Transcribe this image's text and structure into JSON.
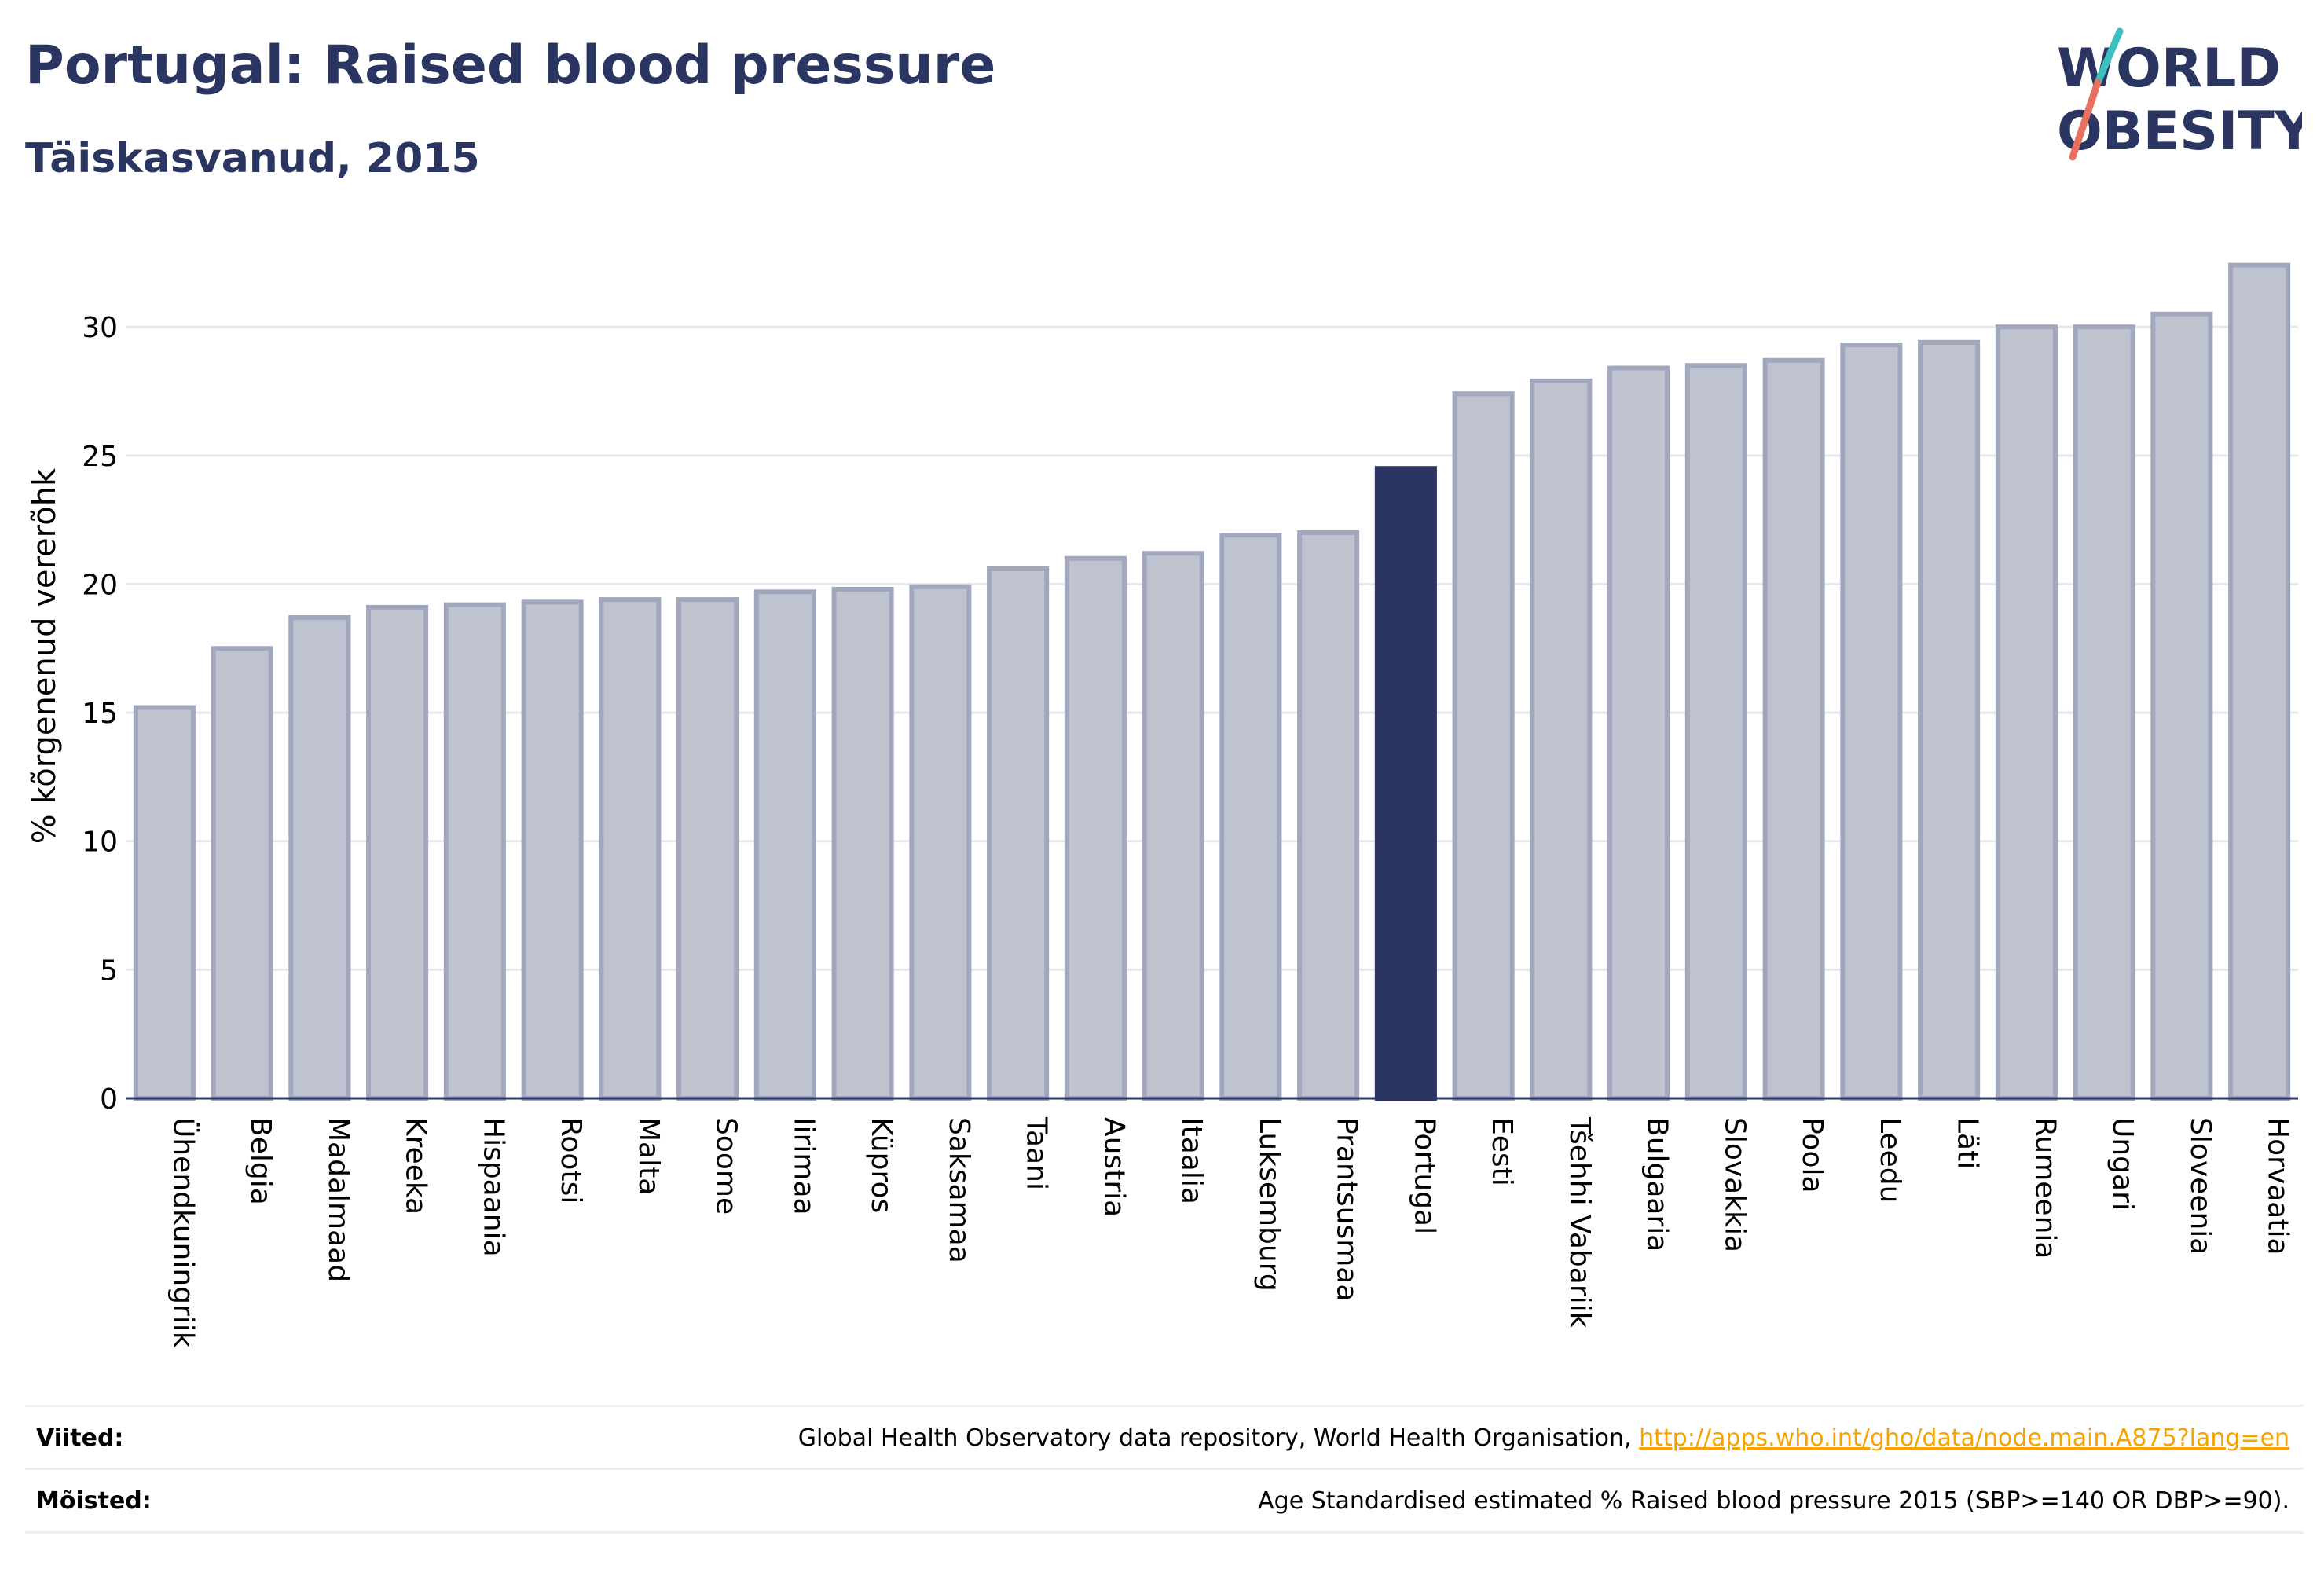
{
  "title": "Portugal: Raised blood pressure",
  "subtitle": "Täiskasvanud, 2015",
  "logo": {
    "line1": "WORLD",
    "line2": "OBESITY"
  },
  "colors": {
    "title": "#2a3561",
    "highlight_bar": "#2a3561",
    "other_bar": "#bfc3d0",
    "other_bar_border": "#a1a8bd",
    "logo_teal": "#3cbfbf",
    "logo_coral": "#e8705f",
    "link": "#f5a300"
  },
  "chart_data": {
    "type": "bar",
    "ylabel": "% kõrgenenud vererõhk",
    "xlabel": "",
    "ylim": [
      0,
      33
    ],
    "yticks": [
      0,
      5,
      10,
      15,
      20,
      25,
      30
    ],
    "grid": true,
    "highlight": "Portugal",
    "categories": [
      "Ühendkuningriik",
      "Belgia",
      "Madalmaad",
      "Kreeka",
      "Hispaania",
      "Rootsi",
      "Malta",
      "Soome",
      "Iirimaa",
      "Küpros",
      "Saksamaa",
      "Taani",
      "Austria",
      "Itaalia",
      "Luksemburg",
      "Prantsusmaa",
      "Portugal",
      "Eesti",
      "Tšehhi Vabariik",
      "Bulgaaria",
      "Slovakkia",
      "Poola",
      "Leedu",
      "Läti",
      "Rumeenia",
      "Ungari",
      "Sloveenia",
      "Horvaatia"
    ],
    "values": [
      15.2,
      17.5,
      18.7,
      19.1,
      19.2,
      19.3,
      19.4,
      19.4,
      19.7,
      19.8,
      19.9,
      20.6,
      21.0,
      21.2,
      21.9,
      22.0,
      24.5,
      27.4,
      27.9,
      28.4,
      28.5,
      28.7,
      29.3,
      29.4,
      30.0,
      30.0,
      30.5,
      32.4
    ]
  },
  "footer": {
    "refs_label": "Viited:",
    "refs_text": "Global Health Observatory data repository, World Health Organisation,",
    "refs_link": "http://apps.who.int/gho/data/node.main.A875?lang=en",
    "defs_label": "Mõisted:",
    "defs_text": "Age Standardised estimated % Raised blood pressure 2015 (SBP>=140 OR DBP>=90)."
  }
}
